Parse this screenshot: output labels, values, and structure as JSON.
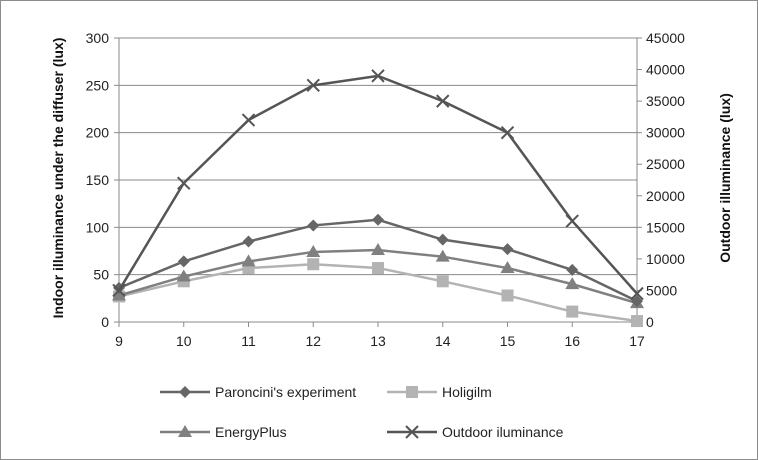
{
  "chart_data": {
    "type": "line",
    "x": [
      9,
      10,
      11,
      12,
      13,
      14,
      15,
      16,
      17
    ],
    "xlim": [
      9,
      17
    ],
    "ylabel": "Indoor illuminance under the diffuser (lux)",
    "ylim": [
      0,
      300
    ],
    "yticks": [
      0,
      50,
      100,
      150,
      200,
      250,
      300
    ],
    "y2label": "Outdoor illuminance (lux)",
    "y2lim": [
      0,
      45000
    ],
    "y2ticks": [
      0,
      5000,
      10000,
      15000,
      20000,
      25000,
      30000,
      35000,
      40000,
      45000
    ],
    "grid": true,
    "legend_position": "bottom",
    "series": [
      {
        "name": "Paroncini's experiment",
        "axis": "left",
        "marker": "diamond",
        "color": "#666666",
        "values": [
          36,
          64,
          85,
          102,
          108,
          87,
          77,
          55,
          22
        ]
      },
      {
        "name": "Holigilm",
        "axis": "left",
        "marker": "square",
        "color": "#b3b3b3",
        "values": [
          27,
          43,
          57,
          61,
          57,
          43,
          28,
          11,
          1
        ]
      },
      {
        "name": "EnergyPlus",
        "axis": "left",
        "marker": "triangle",
        "color": "#808080",
        "values": [
          28,
          48,
          64,
          74,
          76,
          69,
          57,
          40,
          20
        ]
      },
      {
        "name": "Outdoor iluminance",
        "axis": "right",
        "marker": "x",
        "color": "#555555",
        "values": [
          5000,
          22000,
          32000,
          37500,
          39000,
          35000,
          30000,
          16000,
          4500
        ]
      }
    ]
  }
}
